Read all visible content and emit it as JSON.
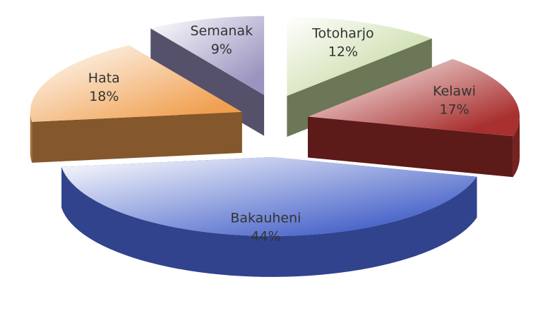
{
  "chart_data": {
    "type": "pie",
    "categories": [
      "Totoharjo",
      "Kelawi",
      "Bakauheni",
      "Hata",
      "Semanak"
    ],
    "values": [
      12,
      17,
      44,
      18,
      9
    ],
    "value_labels": [
      "12%",
      "17%",
      "44%",
      "18%",
      "9%"
    ],
    "colors": [
      "#c4d89e",
      "#a8302e",
      "#4460c8",
      "#f0a050",
      "#9c94c0"
    ]
  }
}
